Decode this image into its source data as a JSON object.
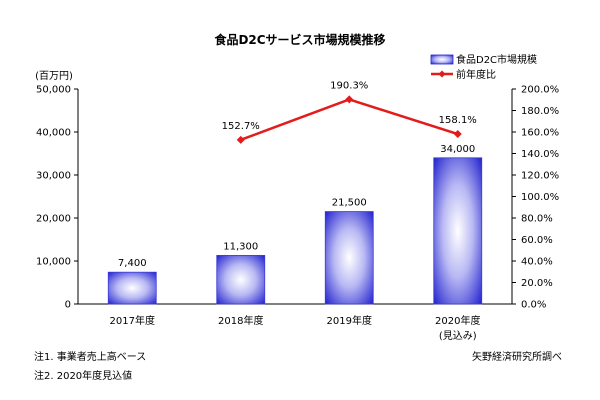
{
  "chart_data": {
    "type": "bar",
    "title": "食品D2Cサービス市場規模推移",
    "categories": [
      "2017年度",
      "2018年度",
      "2019年度",
      "2020年度"
    ],
    "category_sublabels": [
      "",
      "",
      "",
      "(見込み)"
    ],
    "y_unit_label": "(百万円)",
    "ylim": [
      0,
      50000
    ],
    "y_ticks": [
      "0",
      "10,000",
      "20,000",
      "30,000",
      "40,000",
      "50,000"
    ],
    "y2lim": [
      0,
      200
    ],
    "y2_ticks": [
      "0.0%",
      "20.0%",
      "40.0%",
      "60.0%",
      "80.0%",
      "100.0%",
      "120.0%",
      "140.0%",
      "160.0%",
      "180.0%",
      "200.0%"
    ],
    "legend_position": "top-right",
    "grid": false,
    "series": [
      {
        "name": "食品D2C市場規模",
        "type": "bar",
        "axis": "left",
        "values": [
          7400,
          11300,
          21500,
          34000
        ],
        "labels": [
          "7,400",
          "11,300",
          "21,500",
          "34,000"
        ],
        "color": "#3b3bd6"
      },
      {
        "name": "前年度比",
        "type": "line",
        "axis": "right",
        "values": [
          null,
          152.7,
          190.3,
          158.1
        ],
        "labels": [
          "",
          "152.7%",
          "190.3%",
          "158.1%"
        ],
        "color": "#e31b1b"
      }
    ]
  },
  "notes": [
    "注1. 事業者売上高ベース",
    "注2. 2020年度見込値"
  ],
  "source": "矢野経済研究所調べ"
}
